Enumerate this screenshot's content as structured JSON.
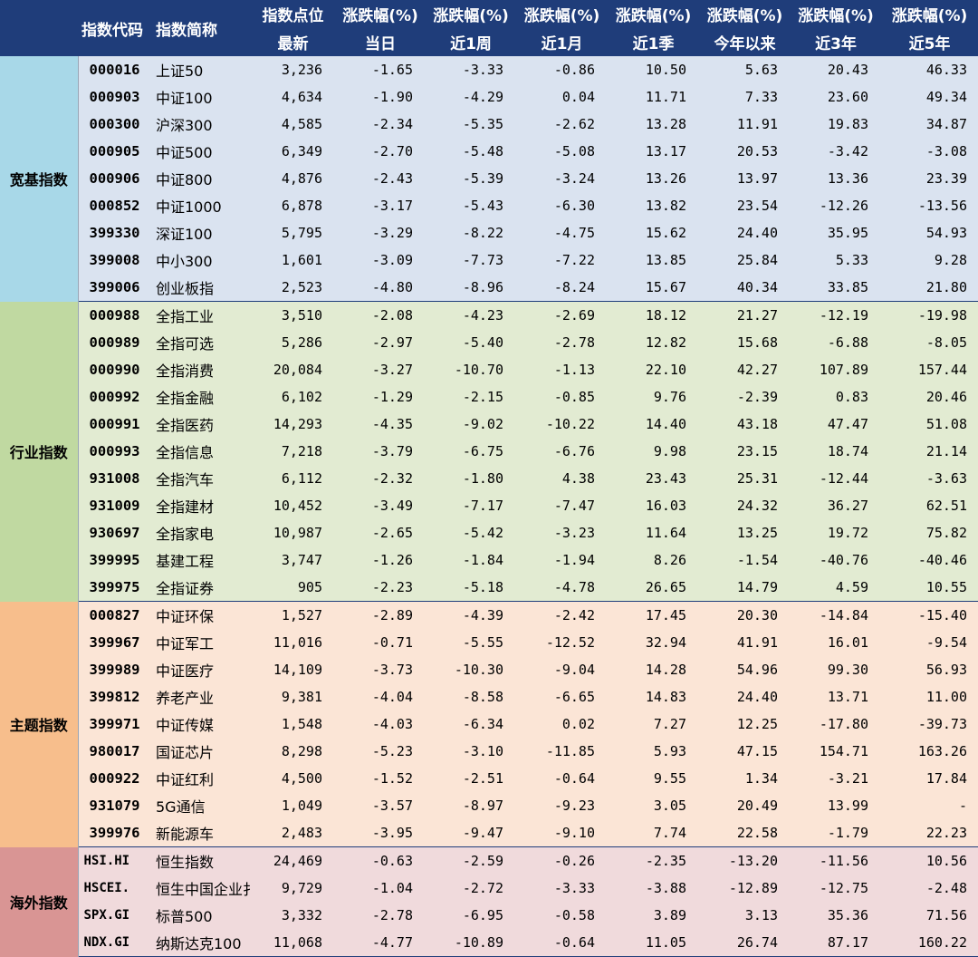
{
  "header": {
    "row1": [
      "指数代码",
      "指数简称",
      "指数点位",
      "涨跌幅(%)",
      "涨跌幅(%)",
      "涨跌幅(%)",
      "涨跌幅(%)",
      "涨跌幅(%)",
      "涨跌幅(%)",
      "涨跌幅(%)"
    ],
    "row2": [
      "最新",
      "当日",
      "近1周",
      "近1月",
      "近1季",
      "今年以来",
      "近3年",
      "近5年"
    ]
  },
  "groups": [
    {
      "category": "宽基指数",
      "rows": [
        [
          "000016",
          "上证50",
          "3,236",
          "-1.65",
          "-3.33",
          "-0.86",
          "10.50",
          "5.63",
          "20.43",
          "46.33"
        ],
        [
          "000903",
          "中证100",
          "4,634",
          "-1.90",
          "-4.29",
          "0.04",
          "11.71",
          "7.33",
          "23.60",
          "49.34"
        ],
        [
          "000300",
          "沪深300",
          "4,585",
          "-2.34",
          "-5.35",
          "-2.62",
          "13.28",
          "11.91",
          "19.83",
          "34.87"
        ],
        [
          "000905",
          "中证500",
          "6,349",
          "-2.70",
          "-5.48",
          "-5.08",
          "13.17",
          "20.53",
          "-3.42",
          "-3.08"
        ],
        [
          "000906",
          "中证800",
          "4,876",
          "-2.43",
          "-5.39",
          "-3.24",
          "13.26",
          "13.97",
          "13.36",
          "23.39"
        ],
        [
          "000852",
          "中证1000",
          "6,878",
          "-3.17",
          "-5.43",
          "-6.30",
          "13.82",
          "23.54",
          "-12.26",
          "-13.56"
        ],
        [
          "399330",
          "深证100",
          "5,795",
          "-3.29",
          "-8.22",
          "-4.75",
          "15.62",
          "24.40",
          "35.95",
          "54.93"
        ],
        [
          "399008",
          "中小300",
          "1,601",
          "-3.09",
          "-7.73",
          "-7.22",
          "13.85",
          "25.84",
          "5.33",
          "9.28"
        ],
        [
          "399006",
          "创业板指",
          "2,523",
          "-4.80",
          "-8.96",
          "-8.24",
          "15.67",
          "40.34",
          "33.85",
          "21.80"
        ]
      ]
    },
    {
      "category": "行业指数",
      "rows": [
        [
          "000988",
          "全指工业",
          "3,510",
          "-2.08",
          "-4.23",
          "-2.69",
          "18.12",
          "21.27",
          "-12.19",
          "-19.98"
        ],
        [
          "000989",
          "全指可选",
          "5,286",
          "-2.97",
          "-5.40",
          "-2.78",
          "12.82",
          "15.68",
          "-6.88",
          "-8.05"
        ],
        [
          "000990",
          "全指消费",
          "20,084",
          "-3.27",
          "-10.70",
          "-1.13",
          "22.10",
          "42.27",
          "107.89",
          "157.44"
        ],
        [
          "000992",
          "全指金融",
          "6,102",
          "-1.29",
          "-2.15",
          "-0.85",
          "9.76",
          "-2.39",
          "0.83",
          "20.46"
        ],
        [
          "000991",
          "全指医药",
          "14,293",
          "-4.35",
          "-9.02",
          "-10.22",
          "14.40",
          "43.18",
          "47.47",
          "51.08"
        ],
        [
          "000993",
          "全指信息",
          "7,218",
          "-3.79",
          "-6.75",
          "-6.76",
          "9.98",
          "23.15",
          "18.74",
          "21.14"
        ],
        [
          "931008",
          "全指汽车",
          "6,112",
          "-2.32",
          "-1.80",
          "4.38",
          "23.43",
          "25.31",
          "-12.44",
          "-3.63"
        ],
        [
          "931009",
          "全指建材",
          "10,452",
          "-3.49",
          "-7.17",
          "-7.47",
          "16.03",
          "24.32",
          "36.27",
          "62.51"
        ],
        [
          "930697",
          "全指家电",
          "10,987",
          "-2.65",
          "-5.42",
          "-3.23",
          "11.64",
          "13.25",
          "19.72",
          "75.82"
        ],
        [
          "399995",
          "基建工程",
          "3,747",
          "-1.26",
          "-1.84",
          "-1.94",
          "8.26",
          "-1.54",
          "-40.76",
          "-40.46"
        ],
        [
          "399975",
          "全指证券",
          "905",
          "-2.23",
          "-5.18",
          "-4.78",
          "26.65",
          "14.79",
          "4.59",
          "10.55"
        ]
      ]
    },
    {
      "category": "主题指数",
      "rows": [
        [
          "000827",
          "中证环保",
          "1,527",
          "-2.89",
          "-4.39",
          "-2.42",
          "17.45",
          "20.30",
          "-14.84",
          "-15.40"
        ],
        [
          "399967",
          "中证军工",
          "11,016",
          "-0.71",
          "-5.55",
          "-12.52",
          "32.94",
          "41.91",
          "16.01",
          "-9.54"
        ],
        [
          "399989",
          "中证医疗",
          "14,109",
          "-3.73",
          "-10.30",
          "-9.04",
          "14.28",
          "54.96",
          "99.30",
          "56.93"
        ],
        [
          "399812",
          "养老产业",
          "9,381",
          "-4.04",
          "-8.58",
          "-6.65",
          "14.83",
          "24.40",
          "13.71",
          "11.00"
        ],
        [
          "399971",
          "中证传媒",
          "1,548",
          "-4.03",
          "-6.34",
          "0.02",
          "7.27",
          "12.25",
          "-17.80",
          "-39.73"
        ],
        [
          "980017",
          "国证芯片",
          "8,298",
          "-5.23",
          "-3.10",
          "-11.85",
          "5.93",
          "47.15",
          "154.71",
          "163.26"
        ],
        [
          "000922",
          "中证红利",
          "4,500",
          "-1.52",
          "-2.51",
          "-0.64",
          "9.55",
          "1.34",
          "-3.21",
          "17.84"
        ],
        [
          "931079",
          "5G通信",
          "1,049",
          "-3.57",
          "-8.97",
          "-9.23",
          "3.05",
          "20.49",
          "13.99",
          "-"
        ],
        [
          "399976",
          "新能源车",
          "2,483",
          "-3.95",
          "-9.47",
          "-9.10",
          "7.74",
          "22.58",
          "-1.79",
          "22.23"
        ]
      ]
    },
    {
      "category": "海外指数",
      "rows": [
        [
          "HSI.HI",
          "恒生指数",
          "24,469",
          "-0.63",
          "-2.59",
          "-0.26",
          "-2.35",
          "-13.20",
          "-11.56",
          "10.56"
        ],
        [
          "HSCEI.",
          "恒生中国企业扌",
          "9,729",
          "-1.04",
          "-2.72",
          "-3.33",
          "-3.88",
          "-12.89",
          "-12.75",
          "-2.48"
        ],
        [
          "SPX.GI",
          "标普500",
          "3,332",
          "-2.78",
          "-6.95",
          "-0.58",
          "3.89",
          "3.13",
          "35.36",
          "71.56"
        ],
        [
          "NDX.GI",
          "纳斯达克100",
          "11,068",
          "-4.77",
          "-10.89",
          "-0.64",
          "11.05",
          "26.74",
          "87.17",
          "160.22"
        ]
      ]
    }
  ]
}
